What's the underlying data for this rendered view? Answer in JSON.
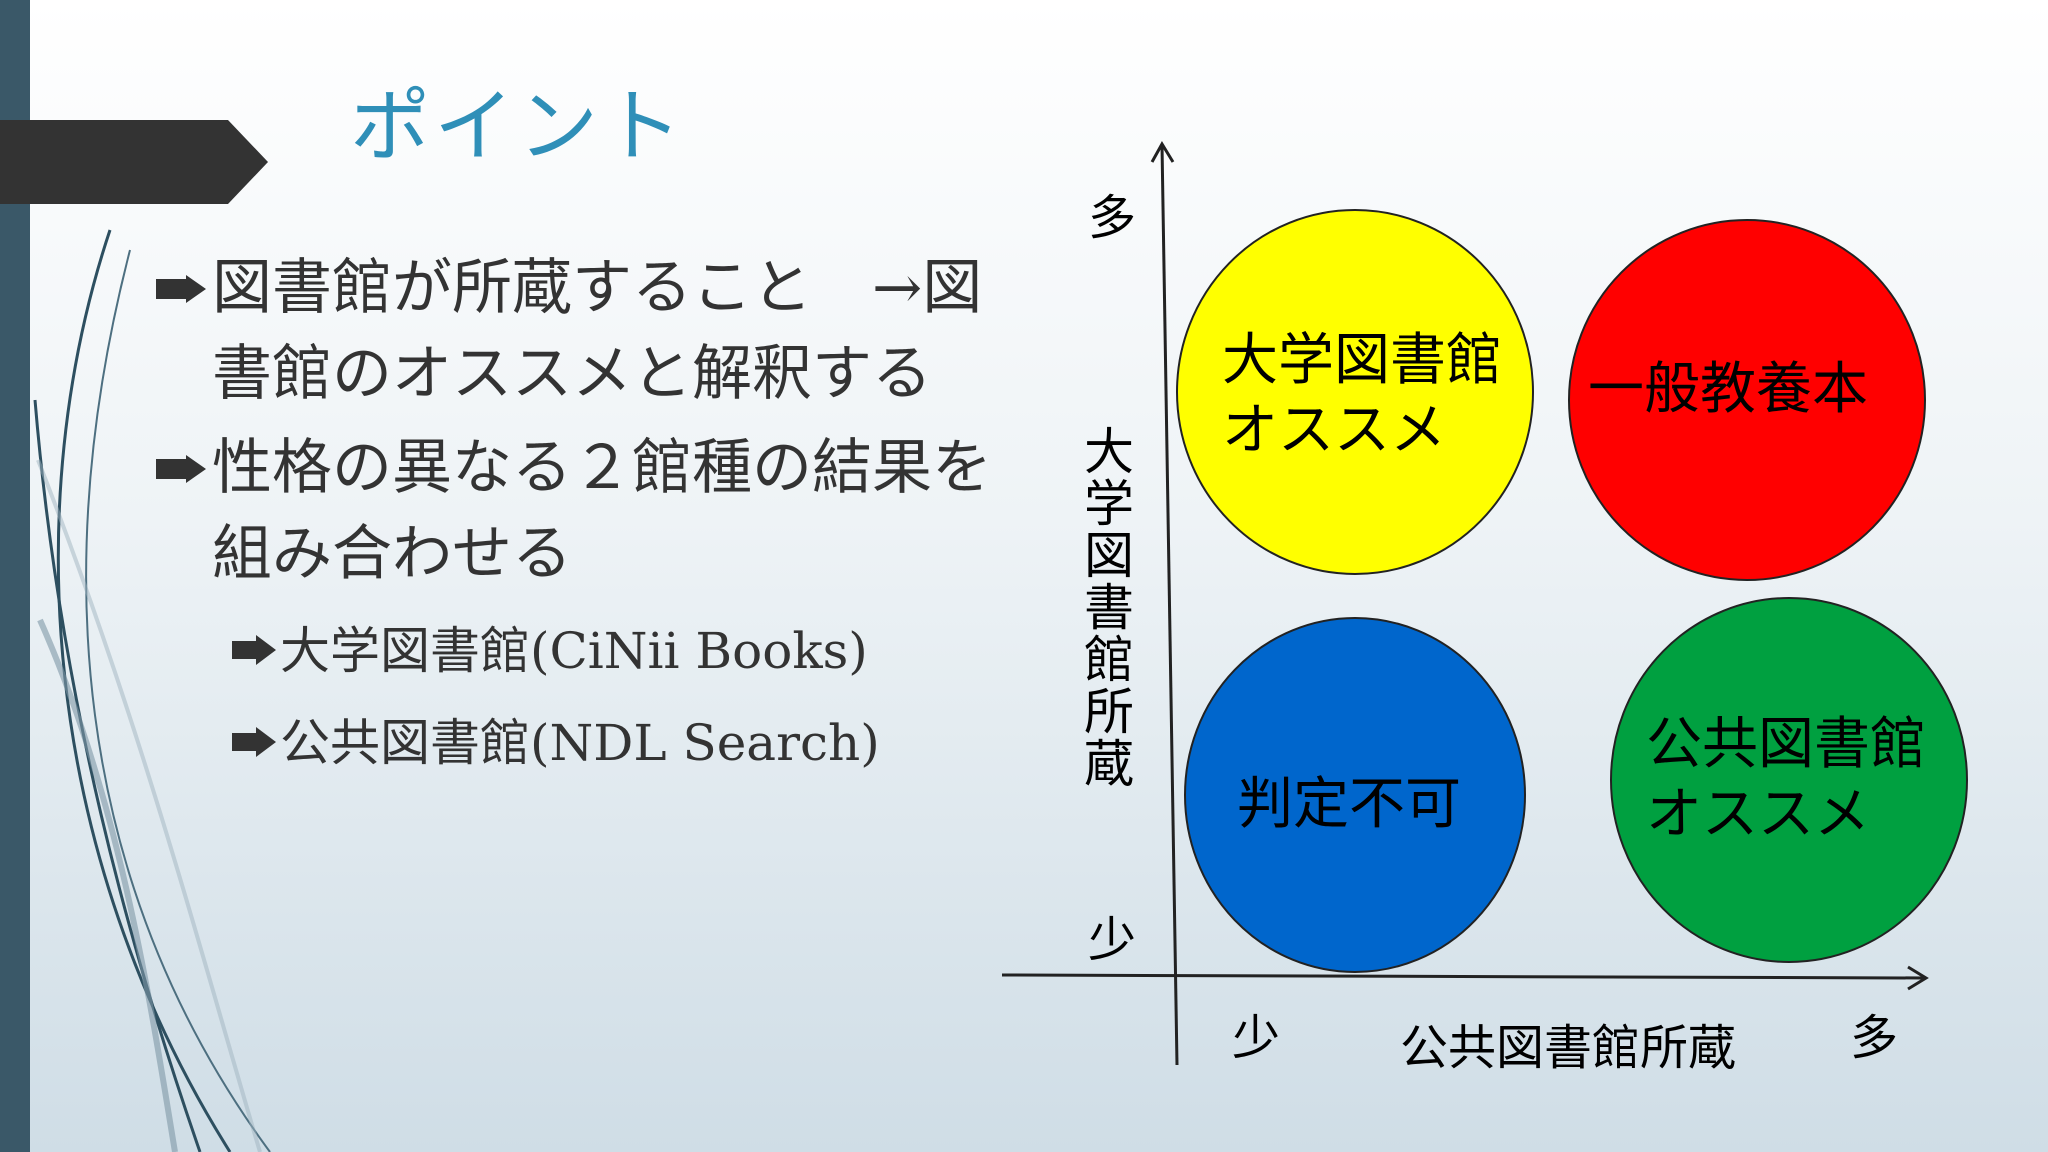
{
  "slide": {
    "title": "ポイント",
    "bullets": [
      {
        "text": "図書館が所蔵すること　→図書館のオススメと解釈する"
      },
      {
        "text": "性格の異なる２館種の結果を組み合わせる"
      }
    ],
    "sub_bullets": [
      {
        "text": "大学図書館(CiNii Books)"
      },
      {
        "text": "公共図書館(NDL Search)"
      }
    ]
  },
  "diagram": {
    "y_axis": {
      "label": "大学図書館所蔵",
      "high": "多",
      "low": "少"
    },
    "x_axis": {
      "label": "公共図書館所蔵",
      "low": "少",
      "high": "多"
    },
    "quadrants": [
      {
        "label": "大学図書館\nオススメ",
        "color": "#ffff00",
        "position": "top-left"
      },
      {
        "label": "一般教養本",
        "color": "#ff0000",
        "position": "top-right"
      },
      {
        "label": "判定不可",
        "color": "#0066cc",
        "position": "bottom-left"
      },
      {
        "label": "公共図書館\nオススメ",
        "color": "#00a040",
        "position": "bottom-right"
      }
    ]
  },
  "colors": {
    "title": "#2f8fb8",
    "sidebar": "#3a5868",
    "title_tab": "#333333"
  }
}
